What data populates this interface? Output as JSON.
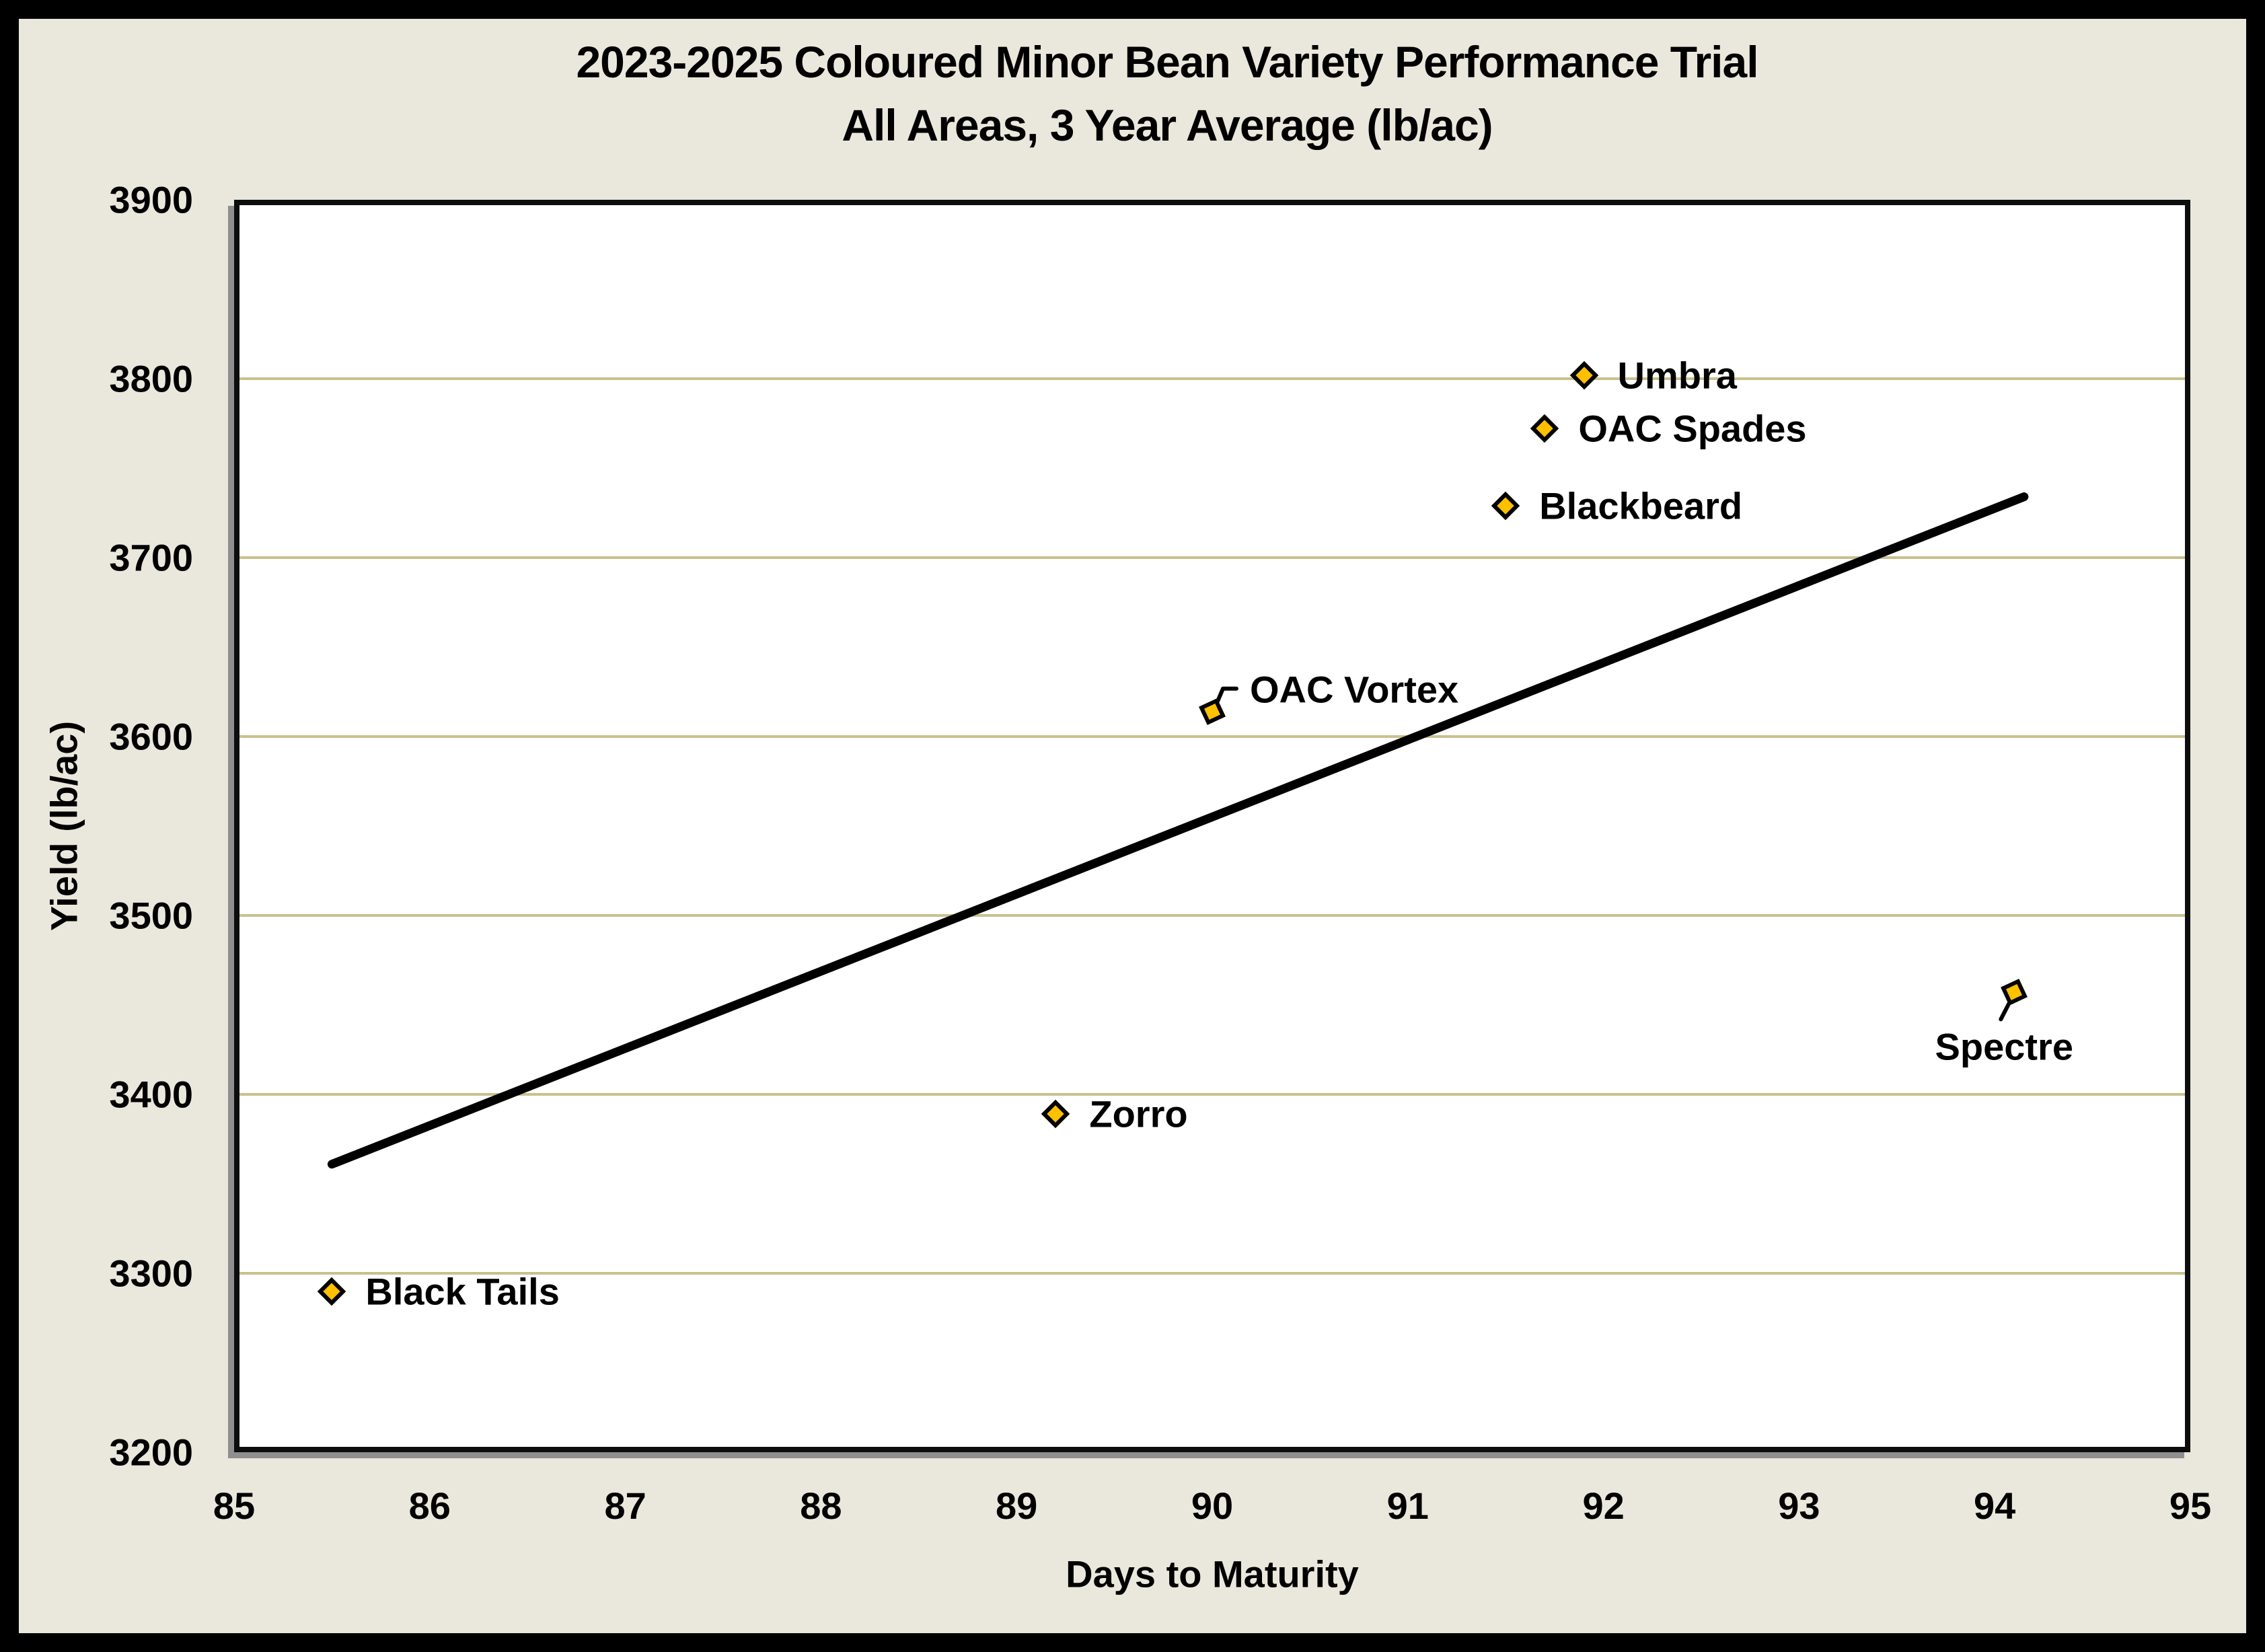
{
  "chart_data": {
    "type": "scatter",
    "title": "2023-2025 Coloured Minor Bean Variety Performance Trial",
    "subtitle": "All Areas, 3 Year Average (lb/ac)",
    "xlabel": "Days to Maturity",
    "ylabel": "Yield (lb/ac)",
    "xlim": [
      85,
      95
    ],
    "ylim": [
      3200,
      3900
    ],
    "x_ticks": [
      85,
      86,
      87,
      88,
      89,
      90,
      91,
      92,
      93,
      94,
      95
    ],
    "y_ticks": [
      3900,
      3800,
      3700,
      3600,
      3500,
      3400,
      3300,
      3200
    ],
    "grid": "horizontal-only",
    "legend": "none",
    "marker": {
      "shape": "diamond",
      "fill": "#ffc000",
      "stroke": "#000000"
    },
    "points": [
      {
        "name": "Black Tails",
        "x": 85.5,
        "y": 3290,
        "label_side": "right",
        "tilted": false
      },
      {
        "name": "Zorro",
        "x": 89.2,
        "y": 3389,
        "label_side": "right",
        "tilted": false
      },
      {
        "name": "OAC Vortex",
        "x": 90.0,
        "y": 3614,
        "label_side": "callout-upper-right",
        "tilted": true
      },
      {
        "name": "Blackbeard",
        "x": 91.5,
        "y": 3729,
        "label_side": "right",
        "tilted": false
      },
      {
        "name": "OAC Spades",
        "x": 91.7,
        "y": 3772,
        "label_side": "right",
        "tilted": false
      },
      {
        "name": "Umbra",
        "x": 91.9,
        "y": 3802,
        "label_side": "right",
        "tilted": false
      },
      {
        "name": "Spectre",
        "x": 94.1,
        "y": 3457,
        "label_side": "callout-below",
        "tilted": true
      }
    ],
    "trendline": {
      "x1": 85.5,
      "y1": 3361,
      "x2": 94.15,
      "y2": 3734
    },
    "colors": {
      "figure_background": "#eae8dc",
      "plot_background": "#ffffff",
      "gridline": "#c9c08e",
      "trendline": "#000000",
      "frame": "#000000",
      "text": "#000000"
    }
  }
}
